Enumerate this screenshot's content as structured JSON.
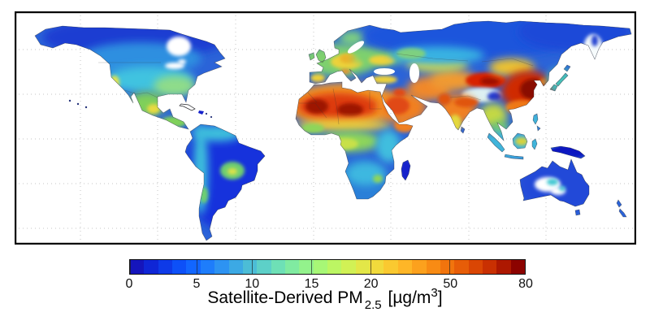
{
  "figure": {
    "title": {
      "prefix": "Satellite-Derived PM",
      "subscript": "2.5",
      "unit_open": " [",
      "unit_text": "µg/m",
      "unit_sup": "3",
      "unit_close": "]"
    },
    "colorbar": {
      "ticks": [
        {
          "label": "0",
          "pos": 0.0
        },
        {
          "label": "5",
          "pos": 0.17
        },
        {
          "label": "10",
          "pos": 0.31
        },
        {
          "label": "15",
          "pos": 0.46
        },
        {
          "label": "20",
          "pos": 0.61
        },
        {
          "label": "50",
          "pos": 0.81
        },
        {
          "label": "80",
          "pos": 1.0
        }
      ],
      "segments": [
        "#1515bc",
        "#0f26d6",
        "#0e3ae8",
        "#0d50f8",
        "#1266ff",
        "#1e7dfb",
        "#2d93f2",
        "#3ca9e4",
        "#4cbdd6",
        "#5dd0c8",
        "#6ee0b6",
        "#80eba1",
        "#93f28c",
        "#a7f776",
        "#bcf663",
        "#d1f155",
        "#e3e748",
        "#f1da3c",
        "#fac930",
        "#feb627",
        "#fca11d",
        "#f88b14",
        "#f1740d",
        "#e75d08",
        "#da4604",
        "#c93002",
        "#ad1801",
        "#8c0300"
      ],
      "border_color": "#111111",
      "tick_color": "#222222"
    },
    "map": {
      "ocean": "#ffffff",
      "frame": "#000000",
      "graticule": "#c4c4c4",
      "coastline": "#26262b",
      "border_lines": "#333333",
      "speck": "#26337a",
      "regions": {
        "base_land": "#2b63d8",
        "arctic_canada": "#1b3ed2",
        "canada_mid": "#2e8fe0",
        "us_cyan": "#3fc3e0",
        "us_green": "#8edc8a",
        "california_yellow": "#e3e34e",
        "mexico_green": "#7fd05a",
        "mexico_yellow": "#e8da40",
        "sam_dark": "#1330dc",
        "andes_cyan": "#3cc0dc",
        "brazil_green": "#6fcf6f",
        "brazil_yellow": "#dce24a",
        "europe_green": "#7ed06e",
        "europe_yellow": "#ecd23a",
        "ceurope_orange": "#eab42c",
        "po_orange": "#ef8f2a",
        "sahara_orange": "#f59a28",
        "sahara_red": "#dd3a10",
        "sahara_dark": "#9e1200",
        "sahel_yellow": "#eecd3a",
        "congo_green": "#8ed65a",
        "congo_yellow": "#c8e04a",
        "eafrica_cyan": "#3fbede",
        "safrica_blue": "#2a7fd8",
        "safrica_cyan": "#3cb8e0",
        "madagascar_blue": "#1522cc",
        "arabia_orange": "#f08020",
        "arabia_red": "#e04812",
        "iran_orange": "#f0882a",
        "centralasia_orange": "#f09a30",
        "kazakh_yellow": "#d8d848",
        "siberia_blue": "#1d55dc",
        "nesiberia_blue": "#1f48d8",
        "siberia_cyan": "#39b2e2",
        "wsiberia_green": "#7ed080",
        "taklamakan_red": "#d82000",
        "taklamakan_dark": "#a00f00",
        "tibet_white": "#ddf0f2",
        "tibet_blue": "#2038d0",
        "gobi_yellow": "#ecc232",
        "china_red": "#cf2a00",
        "china_dark": "#8a0f00",
        "sechina_orange": "#ef7818",
        "india_orange": "#f08020",
        "ganges_red": "#e05510",
        "india_yellow": "#e4d83c",
        "seasia_yellow": "#c4d844",
        "seasia_green": "#79cf65",
        "indonesia_cyan": "#3fb4da",
        "borneo_yellow": "#d8d33c",
        "newguinea_dark": "#1018c0",
        "australia_blue": "#2448d8",
        "australia_cyan": "#41c8d2",
        "japan_cyan": "#47c0b8",
        "kamchatka_white": "#f6fbfc",
        "kamchatka_blue": "#2040d0"
      }
    }
  }
}
